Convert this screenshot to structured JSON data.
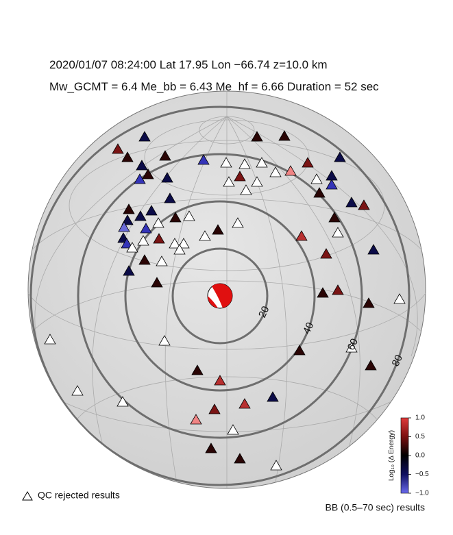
{
  "header": {
    "line1": "2020/01/07  08:24:00   Lat 17.95    Lon −66.74   z=10.0 km",
    "line2": "Mw_GCMT = 6.4   Me_bb = 6.43   Me_hf = 6.66   Duration = 52 sec"
  },
  "map": {
    "rings": [
      20,
      40,
      60,
      80
    ]
  },
  "colorbar": {
    "label": "Log₁₀ (Δ Energy)",
    "lim": [
      -1,
      1
    ],
    "ticks": [
      {
        "value": 1,
        "label": "1.0"
      },
      {
        "value": 0.5,
        "label": "0.5"
      },
      {
        "value": 0,
        "label": "0.0"
      },
      {
        "value": -0.5,
        "label": "−0.5"
      },
      {
        "value": -1,
        "label": "−1.0"
      }
    ]
  },
  "legend": {
    "qc": "QC rejected results",
    "bb": "BB (0.5–70 sec) results"
  }
}
